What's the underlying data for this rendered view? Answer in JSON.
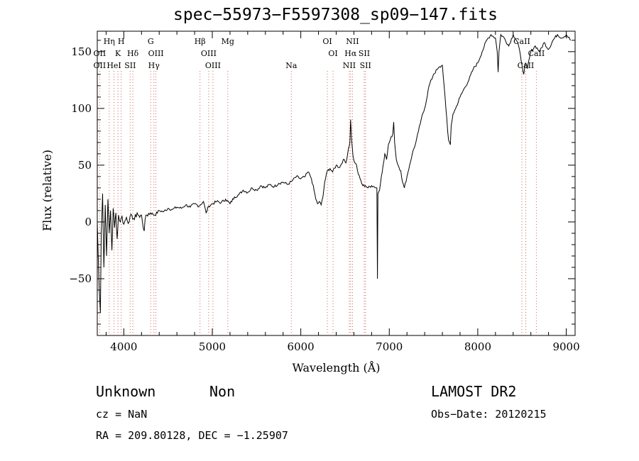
{
  "chart_data": {
    "type": "line",
    "title": "spec−55973−F5597308_sp09−147.fits",
    "xlabel": "Wavelength (Å)",
    "ylabel": "Flux (relative)",
    "xlim": [
      3700,
      9100
    ],
    "ylim": [
      -100,
      168
    ],
    "x_ticks": [
      4000,
      5000,
      6000,
      7000,
      8000,
      9000
    ],
    "y_ticks": [
      -50,
      0,
      50,
      100,
      150
    ],
    "y_tick_labels": [
      "−50",
      "0",
      "50",
      "100",
      "150"
    ],
    "grid": false,
    "series": [
      {
        "points": [
          [
            3700,
            0
          ],
          [
            3720,
            -55
          ],
          [
            3735,
            -80
          ],
          [
            3745,
            -10
          ],
          [
            3760,
            25
          ],
          [
            3775,
            -40
          ],
          [
            3790,
            15
          ],
          [
            3805,
            -30
          ],
          [
            3820,
            20
          ],
          [
            3835,
            -10
          ],
          [
            3850,
            10
          ],
          [
            3865,
            -25
          ],
          [
            3880,
            12
          ],
          [
            3895,
            -5
          ],
          [
            3910,
            8
          ],
          [
            3925,
            -15
          ],
          [
            3940,
            6
          ],
          [
            3960,
            0
          ],
          [
            3980,
            5
          ],
          [
            4000,
            -2
          ],
          [
            4030,
            4
          ],
          [
            4060,
            0
          ],
          [
            4090,
            6
          ],
          [
            4120,
            2
          ],
          [
            4150,
            8
          ],
          [
            4180,
            4
          ],
          [
            4200,
            6
          ],
          [
            4230,
            -8
          ],
          [
            4250,
            6
          ],
          [
            4300,
            8
          ],
          [
            4350,
            6
          ],
          [
            4400,
            10
          ],
          [
            4450,
            9
          ],
          [
            4500,
            12
          ],
          [
            4550,
            11
          ],
          [
            4600,
            13
          ],
          [
            4650,
            12
          ],
          [
            4700,
            15
          ],
          [
            4750,
            13
          ],
          [
            4800,
            16
          ],
          [
            4850,
            14
          ],
          [
            4900,
            18
          ],
          [
            4930,
            8
          ],
          [
            4960,
            14
          ],
          [
            5000,
            16
          ],
          [
            5050,
            18
          ],
          [
            5100,
            17
          ],
          [
            5150,
            20
          ],
          [
            5200,
            16
          ],
          [
            5250,
            22
          ],
          [
            5300,
            24
          ],
          [
            5350,
            28
          ],
          [
            5400,
            26
          ],
          [
            5450,
            30
          ],
          [
            5500,
            28
          ],
          [
            5550,
            32
          ],
          [
            5600,
            30
          ],
          [
            5650,
            33
          ],
          [
            5700,
            31
          ],
          [
            5750,
            34
          ],
          [
            5800,
            35
          ],
          [
            5850,
            33
          ],
          [
            5900,
            36
          ],
          [
            5950,
            40
          ],
          [
            6000,
            38
          ],
          [
            6050,
            40
          ],
          [
            6080,
            44
          ],
          [
            6100,
            42
          ],
          [
            6120,
            38
          ],
          [
            6150,
            28
          ],
          [
            6170,
            20
          ],
          [
            6190,
            16
          ],
          [
            6210,
            18
          ],
          [
            6230,
            15
          ],
          [
            6250,
            22
          ],
          [
            6270,
            35
          ],
          [
            6300,
            45
          ],
          [
            6330,
            47
          ],
          [
            6360,
            44
          ],
          [
            6400,
            50
          ],
          [
            6440,
            48
          ],
          [
            6480,
            55
          ],
          [
            6510,
            52
          ],
          [
            6540,
            65
          ],
          [
            6555,
            70
          ],
          [
            6563,
            90
          ],
          [
            6575,
            72
          ],
          [
            6590,
            58
          ],
          [
            6610,
            52
          ],
          [
            6630,
            50
          ],
          [
            6650,
            42
          ],
          [
            6670,
            38
          ],
          [
            6700,
            32
          ],
          [
            6730,
            32
          ],
          [
            6760,
            30
          ],
          [
            6800,
            32
          ],
          [
            6830,
            31
          ],
          [
            6860,
            30
          ],
          [
            6866,
            -50
          ],
          [
            6872,
            25
          ],
          [
            6890,
            28
          ],
          [
            6910,
            40
          ],
          [
            6930,
            50
          ],
          [
            6950,
            60
          ],
          [
            6970,
            55
          ],
          [
            6990,
            68
          ],
          [
            7010,
            72
          ],
          [
            7040,
            78
          ],
          [
            7050,
            88
          ],
          [
            7060,
            70
          ],
          [
            7080,
            55
          ],
          [
            7100,
            50
          ],
          [
            7130,
            45
          ],
          [
            7150,
            35
          ],
          [
            7170,
            30
          ],
          [
            7200,
            40
          ],
          [
            7230,
            50
          ],
          [
            7260,
            60
          ],
          [
            7300,
            70
          ],
          [
            7330,
            80
          ],
          [
            7360,
            90
          ],
          [
            7400,
            100
          ],
          [
            7450,
            120
          ],
          [
            7500,
            130
          ],
          [
            7550,
            135
          ],
          [
            7600,
            138
          ],
          [
            7620,
            120
          ],
          [
            7640,
            100
          ],
          [
            7660,
            80
          ],
          [
            7670,
            72
          ],
          [
            7690,
            68
          ],
          [
            7700,
            85
          ],
          [
            7720,
            95
          ],
          [
            7750,
            100
          ],
          [
            7800,
            110
          ],
          [
            7850,
            118
          ],
          [
            7900,
            125
          ],
          [
            7950,
            135
          ],
          [
            8000,
            140
          ],
          [
            8050,
            150
          ],
          [
            8100,
            160
          ],
          [
            8150,
            165
          ],
          [
            8200,
            162
          ],
          [
            8220,
            150
          ],
          [
            8230,
            132
          ],
          [
            8240,
            150
          ],
          [
            8260,
            165
          ],
          [
            8300,
            162
          ],
          [
            8350,
            155
          ],
          [
            8400,
            165
          ],
          [
            8450,
            158
          ],
          [
            8480,
            148
          ],
          [
            8500,
            138
          ],
          [
            8520,
            130
          ],
          [
            8540,
            140
          ],
          [
            8560,
            135
          ],
          [
            8600,
            150
          ],
          [
            8650,
            155
          ],
          [
            8700,
            150
          ],
          [
            8750,
            158
          ],
          [
            8800,
            152
          ],
          [
            8850,
            160
          ],
          [
            8900,
            165
          ],
          [
            8950,
            162
          ],
          [
            9000,
            165
          ],
          [
            9050,
            160
          ]
        ]
      }
    ],
    "line_markers": [
      {
        "label": "Hη",
        "x": 3835,
        "row": 1
      },
      {
        "label": "H",
        "x": 3970,
        "row": 1
      },
      {
        "label": "G",
        "x": 4304,
        "row": 1
      },
      {
        "label": "Hβ",
        "x": 4861,
        "row": 1
      },
      {
        "label": "Mg",
        "x": 5175,
        "row": 1
      },
      {
        "label": "OI",
        "x": 6300,
        "row": 1
      },
      {
        "label": "NII",
        "x": 6584,
        "row": 1
      },
      {
        "label": "CaII",
        "x": 8498,
        "row": 1
      },
      {
        "label": "OII",
        "x": 3727,
        "row": 2
      },
      {
        "label": "K",
        "x": 3934,
        "row": 2
      },
      {
        "label": "Hδ",
        "x": 4102,
        "row": 2
      },
      {
        "label": "OIII",
        "x": 4363,
        "row": 2
      },
      {
        "label": "OIII",
        "x": 4959,
        "row": 2
      },
      {
        "label": "OI",
        "x": 6364,
        "row": 2
      },
      {
        "label": "Hα",
        "x": 6563,
        "row": 2
      },
      {
        "label": "SII",
        "x": 6717,
        "row": 2
      },
      {
        "label": "CaII",
        "x": 8662,
        "row": 2
      },
      {
        "label": "OII",
        "x": 3727,
        "row": 3
      },
      {
        "label": "HeI",
        "x": 3889,
        "row": 3
      },
      {
        "label": "SII",
        "x": 4072,
        "row": 3
      },
      {
        "label": "Hγ",
        "x": 4340,
        "row": 3
      },
      {
        "label": "OIII",
        "x": 5007,
        "row": 3
      },
      {
        "label": "Na",
        "x": 5893,
        "row": 3
      },
      {
        "label": "NII",
        "x": 6548,
        "row": 3
      },
      {
        "label": "SII",
        "x": 6731,
        "row": 3
      },
      {
        "label": "CaII",
        "x": 8542,
        "row": 3
      }
    ]
  },
  "info": {
    "class": "Unknown",
    "subclass": "Non",
    "survey": "LAMOST DR2",
    "cz": "cz = NaN",
    "obs_date": "Obs−Date: 20120215",
    "coords": "RA = 209.80128, DEC =  −1.25907"
  }
}
